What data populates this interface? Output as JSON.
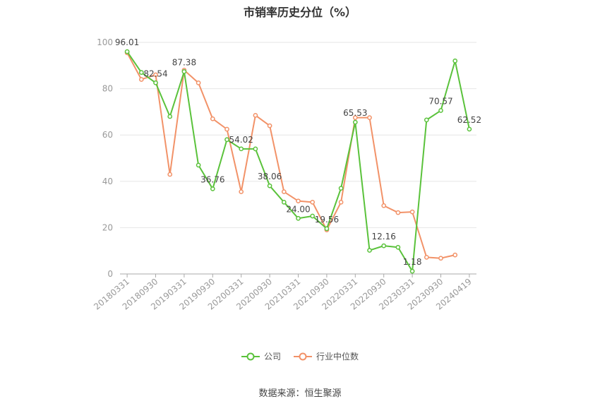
{
  "chart_data": {
    "type": "line",
    "title": "市销率历史分位（%）",
    "xlabel": "",
    "ylabel": "",
    "ylim": [
      0,
      100
    ],
    "yticks": [
      0,
      20,
      40,
      60,
      80,
      100
    ],
    "grid": true,
    "legend_position": "bottom",
    "x": [
      "20180331",
      "20180630",
      "20180930",
      "20181231",
      "20190331",
      "20190630",
      "20190930",
      "20191231",
      "20200331",
      "20200630",
      "20200930",
      "20201231",
      "20210331",
      "20210630",
      "20210930",
      "20211231",
      "20220331",
      "20220630",
      "20220930",
      "20221231",
      "20230331",
      "20230630",
      "20230930",
      "20231231",
      "20240419"
    ],
    "x_tick_labels": [
      "20180331",
      "20180930",
      "20190331",
      "20190930",
      "20200331",
      "20200930",
      "20210331",
      "20210930",
      "20220331",
      "20220930",
      "20230331",
      "20230930",
      "20240419"
    ],
    "x_tick_indices": [
      0,
      2,
      4,
      6,
      8,
      10,
      12,
      14,
      16,
      18,
      20,
      22,
      24
    ],
    "series": [
      {
        "name": "公司",
        "color": "#5ac23b",
        "values": [
          96.01,
          87.0,
          82.54,
          68.0,
          87.38,
          47.0,
          36.76,
          58.0,
          54.02,
          54.0,
          38.06,
          31.0,
          24.0,
          25.0,
          19.56,
          37.0,
          65.53,
          10.2,
          12.16,
          11.5,
          1.18,
          66.5,
          70.57,
          92.0,
          62.52
        ],
        "data_labels": [
          {
            "index": 0,
            "text": "96.01"
          },
          {
            "index": 2,
            "text": "82.54"
          },
          {
            "index": 4,
            "text": "87.38"
          },
          {
            "index": 6,
            "text": "36.76"
          },
          {
            "index": 8,
            "text": "54.02"
          },
          {
            "index": 10,
            "text": "38.06"
          },
          {
            "index": 12,
            "text": "24.00"
          },
          {
            "index": 14,
            "text": "19.56"
          },
          {
            "index": 16,
            "text": "65.53"
          },
          {
            "index": 18,
            "text": "12.16"
          },
          {
            "index": 20,
            "text": "1.18"
          },
          {
            "index": 22,
            "text": "70.57"
          },
          {
            "index": 24,
            "text": "62.52"
          }
        ]
      },
      {
        "name": "行业中位数",
        "color": "#f29268",
        "values": [
          95.5,
          84.0,
          86.0,
          43.0,
          88.0,
          82.5,
          67.0,
          62.5,
          35.5,
          68.5,
          64.0,
          35.5,
          31.5,
          31.0,
          19.0,
          31.0,
          67.5,
          67.5,
          29.5,
          26.5,
          26.8,
          7.2,
          6.8,
          8.2,
          null
        ]
      }
    ]
  },
  "source": "数据来源：恒生聚源"
}
